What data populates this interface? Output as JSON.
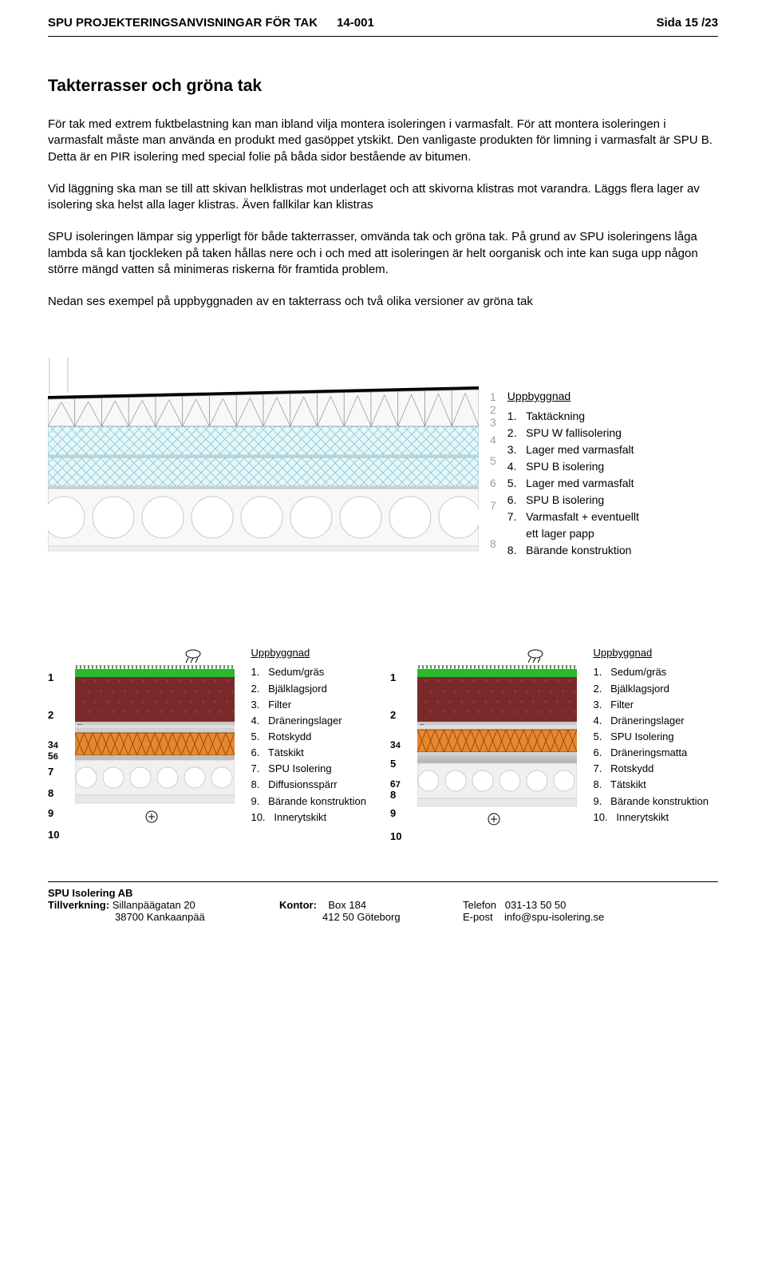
{
  "header": {
    "title": "SPU PROJEKTERINGSANVISNINGAR FÖR TAK",
    "docnum": "14-001",
    "page": "Sida 15 /23"
  },
  "section_title": "Takterrasser och gröna tak",
  "para1": "För tak med extrem fuktbelastning kan man ibland vilja montera isoleringen i varmasfalt. För att montera isoleringen i varmasfalt måste man använda en produkt med gasöppet ytskikt. Den vanligaste produkten för limning i varmasfalt är SPU B. Detta är en PIR isolering med special folie på båda sidor bestående av bitumen.",
  "para2": "Vid läggning ska man se till att skivan helklistras mot underlaget och att skivorna klistras mot varandra. Läggs flera lager av isolering ska helst alla lager klistras. Även fallkilar kan klistras",
  "para3": "SPU isoleringen lämpar sig ypperligt för både takterrasser, omvända tak och gröna tak. På grund av SPU isoleringens låga lambda så kan tjockleken på taken hållas nere och i och med att isoleringen är helt oorganisk och inte kan suga upp någon större mängd vatten så minimeras riskerna för framtida problem.",
  "para4": "Nedan ses exempel på uppbyggnaden av en takterrass och två olika versioner av gröna tak",
  "legend1": {
    "title": "Uppbyggnad",
    "items": [
      "Taktäckning",
      "SPU W fallisolering",
      "Lager med varmasfalt",
      "SPU B isolering",
      "Lager med varmasfalt",
      "SPU B isolering",
      "Varmasfalt + eventuellt ett lager papp",
      "Bärande konstruktion"
    ]
  },
  "legendA": {
    "title": "Uppbyggnad",
    "items": [
      "Sedum/gräs",
      "Bjälklagsjord",
      "Filter",
      "Dräneringslager",
      "Rotskydd",
      "Tätskikt",
      "SPU Isolering",
      "Diffusionsspärr",
      "Bärande konstruktion",
      "Innerytskikt"
    ]
  },
  "legendB": {
    "title": "Uppbyggnad",
    "items": [
      "Sedum/gräs",
      "Bjälklagsjord",
      "Filter",
      "Dräneringslager",
      "SPU Isolering",
      "Dräneringsmatta",
      "Rotskydd",
      "Tätskikt",
      "Bärande konstruktion",
      "Innerytskikt"
    ]
  },
  "colors": {
    "hatch": "#a8e0e8",
    "hatch_stroke": "#5fb8c8",
    "triangle_fill": "#f8f8f8",
    "triangle_stroke": "#808080",
    "black": "#000000",
    "grey_line": "#bdbdbd",
    "grass": "#2db82d",
    "soil": "#7a2a2a",
    "orange": "#e8872c",
    "concrete": "#e0e0e0",
    "lightgrey": "#dedede"
  },
  "footer": {
    "company": "SPU Isolering AB",
    "label_manuf": "Tillverkning:",
    "addr1": "Sillanpäägatan 20",
    "addr2": "38700 Kankaanpää",
    "label_office": "Kontor:",
    "box": "Box 184",
    "city": "412 50 Göteborg",
    "tel_label": "Telefon",
    "tel": "031-13 50 50",
    "email_label": "E-post",
    "email": "info@spu-isolering.se"
  }
}
